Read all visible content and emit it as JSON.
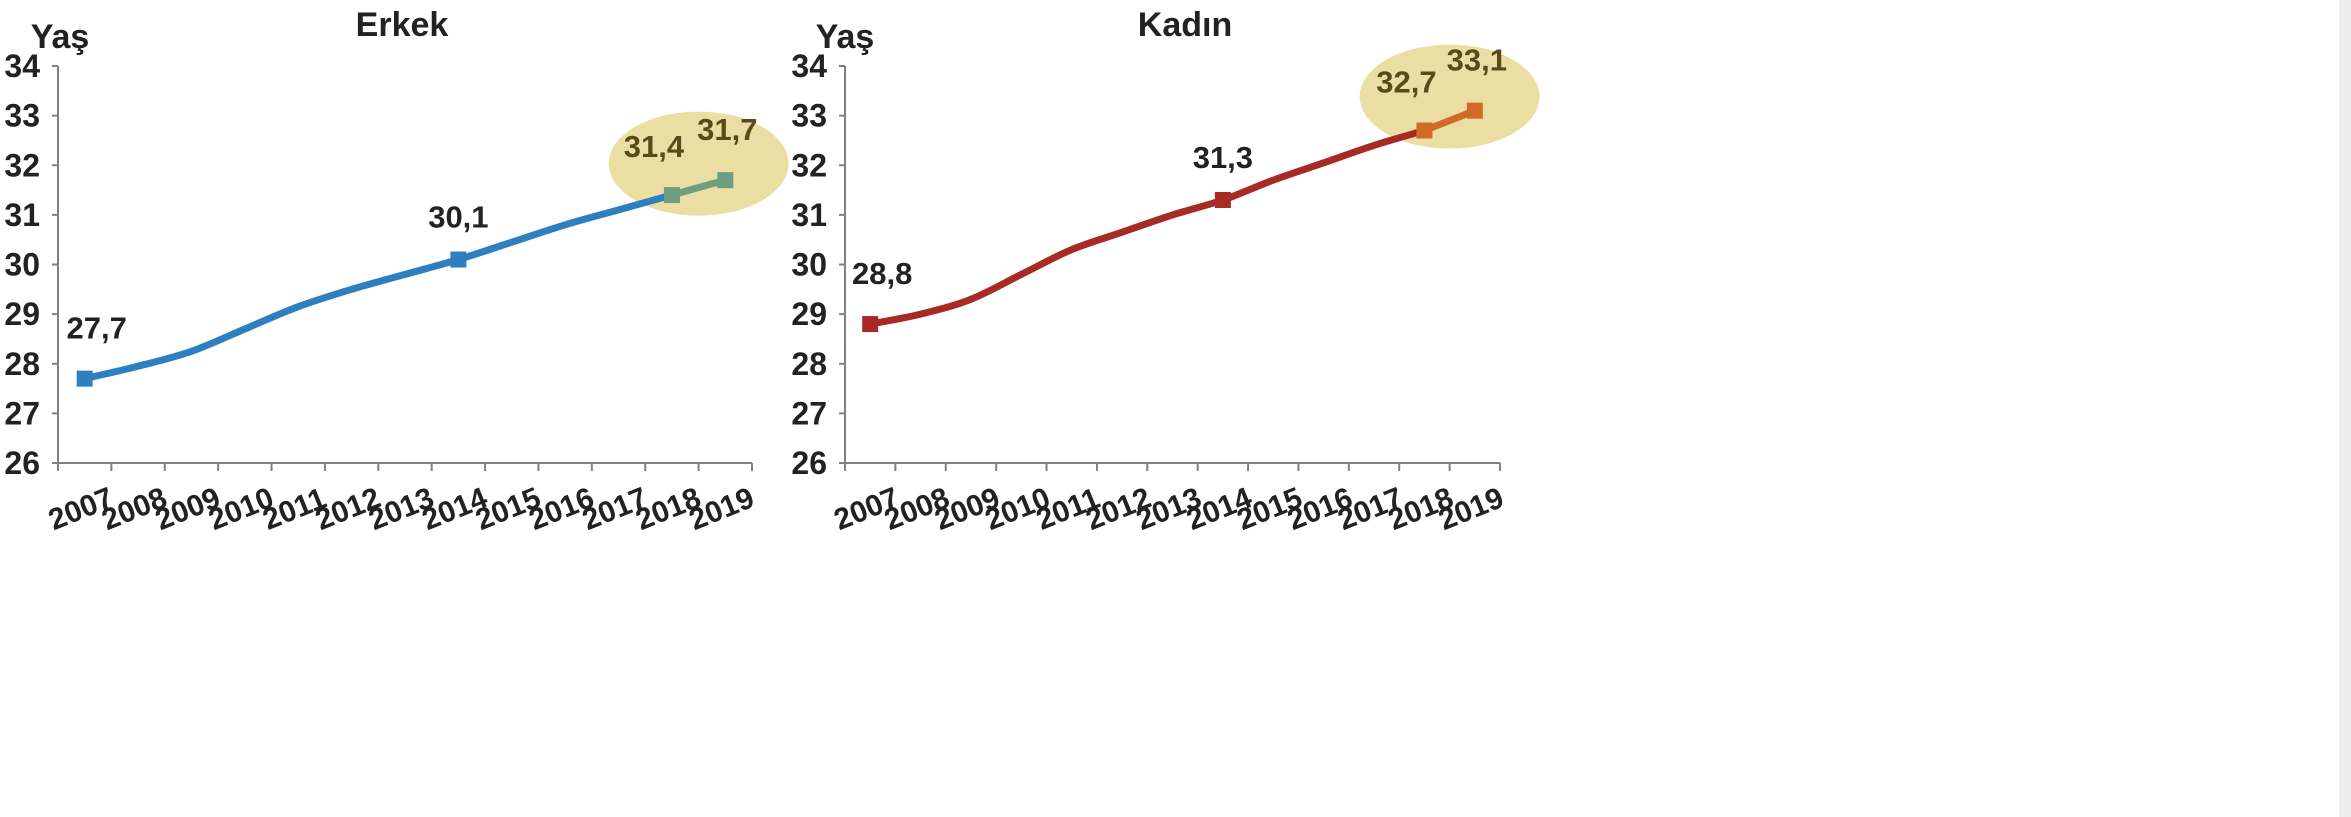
{
  "chart_data": [
    {
      "type": "line",
      "title": "Erkek",
      "ylabel": "Yaş",
      "xlabel": "",
      "ylim": [
        26,
        34
      ],
      "yticks": [
        26,
        27,
        28,
        29,
        30,
        31,
        32,
        33,
        34
      ],
      "x": [
        "2007",
        "2008",
        "2009",
        "2010",
        "2011",
        "2012",
        "2013",
        "2014",
        "2015",
        "2016",
        "2017",
        "2018",
        "2019"
      ],
      "series": [
        {
          "values": [
            27.7,
            27.95,
            28.25,
            28.7,
            29.15,
            29.5,
            29.8,
            30.1,
            30.45,
            30.8,
            31.1,
            31.4,
            31.7
          ]
        }
      ],
      "data_labels": [
        {
          "x": "2007",
          "value": 27.7,
          "text": "27,7"
        },
        {
          "x": "2014",
          "value": 30.1,
          "text": "30,1"
        },
        {
          "x": "2018",
          "value": 31.4,
          "text": "31,4"
        },
        {
          "x": "2019",
          "value": 31.7,
          "text": "31,7"
        }
      ],
      "highlight_years": [
        "2018",
        "2019"
      ],
      "colors": {
        "line": "#2e7fc0",
        "highlight_line": "#6e9e7e",
        "highlight_ellipse": "#e6d892"
      }
    },
    {
      "type": "line",
      "title": "Kadın",
      "ylabel": "Yaş",
      "xlabel": "",
      "ylim": [
        26,
        34
      ],
      "yticks": [
        26,
        27,
        28,
        29,
        30,
        31,
        32,
        33,
        34
      ],
      "x": [
        "2007",
        "2008",
        "2009",
        "2010",
        "2011",
        "2012",
        "2013",
        "2014",
        "2015",
        "2016",
        "2017",
        "2018",
        "2019"
      ],
      "series": [
        {
          "values": [
            28.8,
            29.0,
            29.3,
            29.8,
            30.3,
            30.65,
            31.0,
            31.3,
            31.7,
            32.05,
            32.4,
            32.7,
            33.1
          ]
        }
      ],
      "data_labels": [
        {
          "x": "2007",
          "value": 28.8,
          "text": "28,8"
        },
        {
          "x": "2014",
          "value": 31.3,
          "text": "31,3"
        },
        {
          "x": "2018",
          "value": 32.7,
          "text": "32,7"
        },
        {
          "x": "2019",
          "value": 33.1,
          "text": "33,1"
        }
      ],
      "highlight_years": [
        "2018",
        "2019"
      ],
      "colors": {
        "line": "#a82a25",
        "highlight_line": "#d06a28",
        "highlight_ellipse": "#e6d892"
      }
    }
  ]
}
